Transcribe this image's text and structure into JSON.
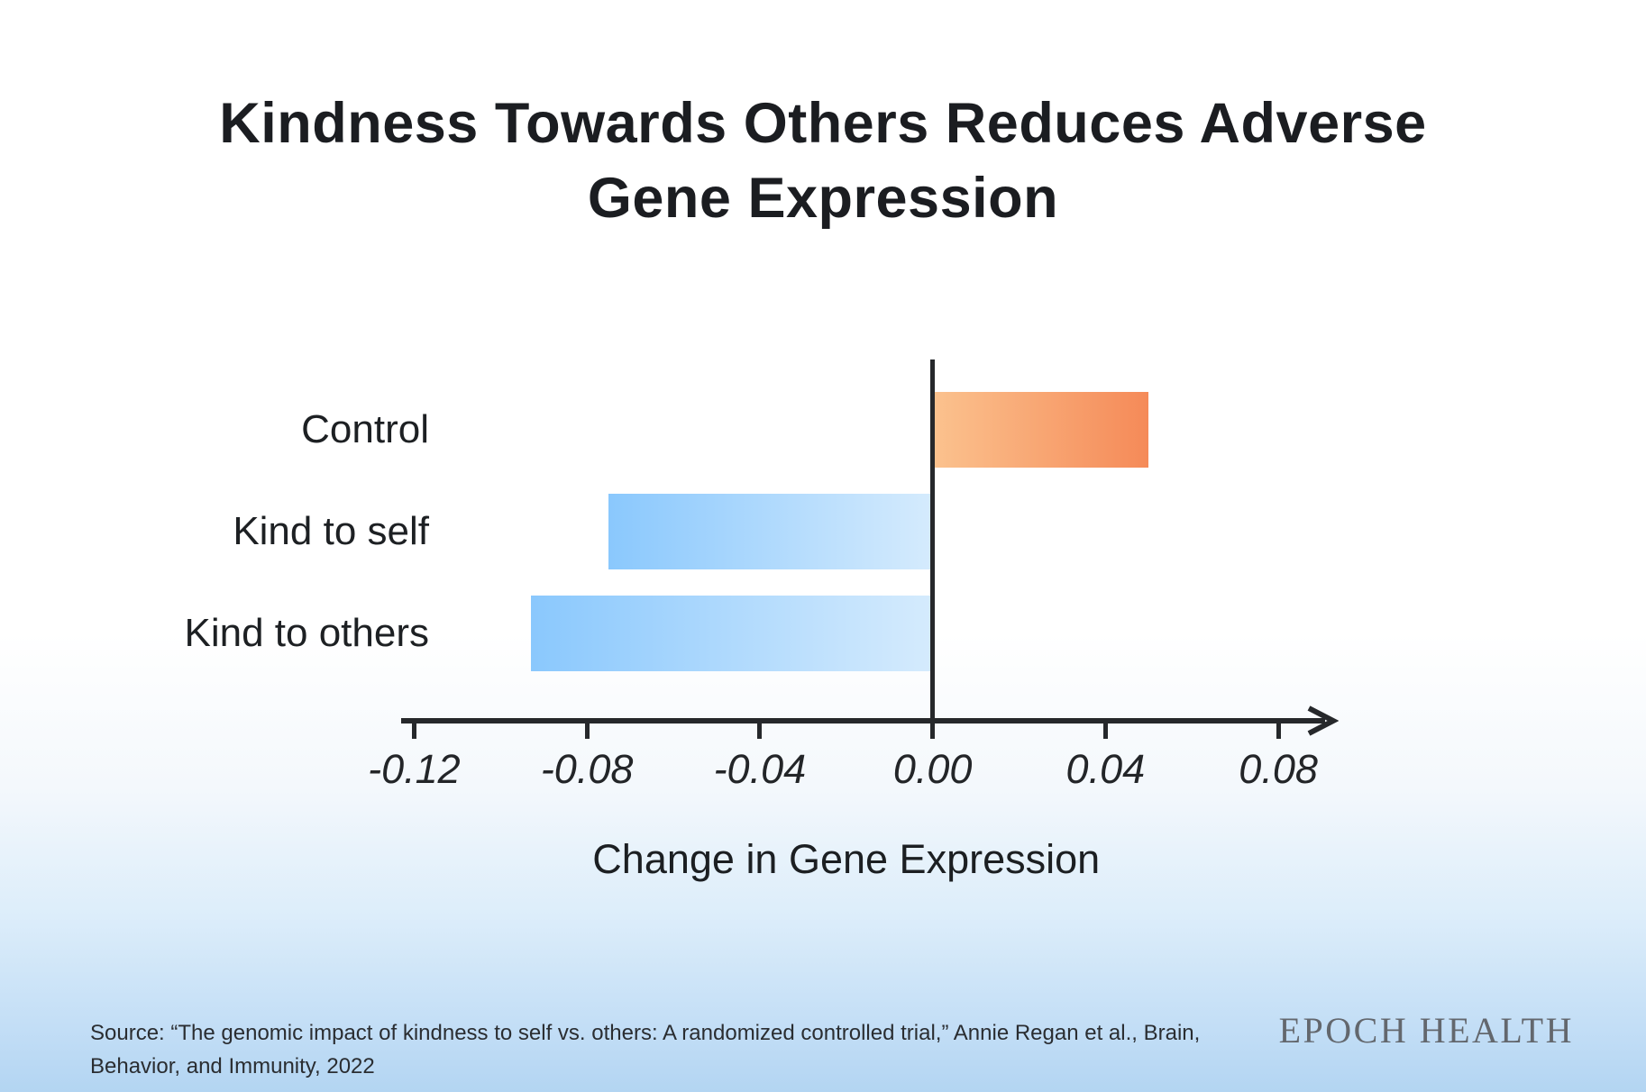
{
  "header": {
    "title_line1": "Kindness Towards Others Reduces Adverse",
    "title_line2": "Gene Expression"
  },
  "footer": {
    "source_line1": "Source: “The genomic impact of kindness to self vs. others: A randomized controlled trial,” Annie Regan et al., Brain,",
    "source_line2": "Behavior, and Immunity, 2022",
    "brand": "EPOCH HEALTH"
  },
  "chart_data": {
    "type": "bar",
    "orientation": "horizontal",
    "title": "Kindness Towards Others Reduces Adverse Gene Expression",
    "xlabel": "Change in Gene Expression",
    "categories": [
      "Control",
      "Kind to self",
      "Kind to others"
    ],
    "values": [
      0.05,
      -0.075,
      -0.093
    ],
    "xlim": [
      -0.123,
      0.095
    ],
    "xticks": [
      -0.12,
      -0.08,
      -0.04,
      0,
      0.04,
      0.08
    ],
    "xtick_labels": [
      "-0.12",
      "-0.08",
      "-0.04",
      "0.00",
      "0.04",
      "0.08"
    ],
    "grid": false,
    "legend": false,
    "colors": {
      "positive_gradient": [
        "#fbc28e",
        "#f58a58"
      ],
      "negative_gradient": [
        "#8ac8fd",
        "#d5ebfd"
      ],
      "axis": "#26282b",
      "text": "#1d2023",
      "background_bottom": "#b3d5f2"
    }
  }
}
